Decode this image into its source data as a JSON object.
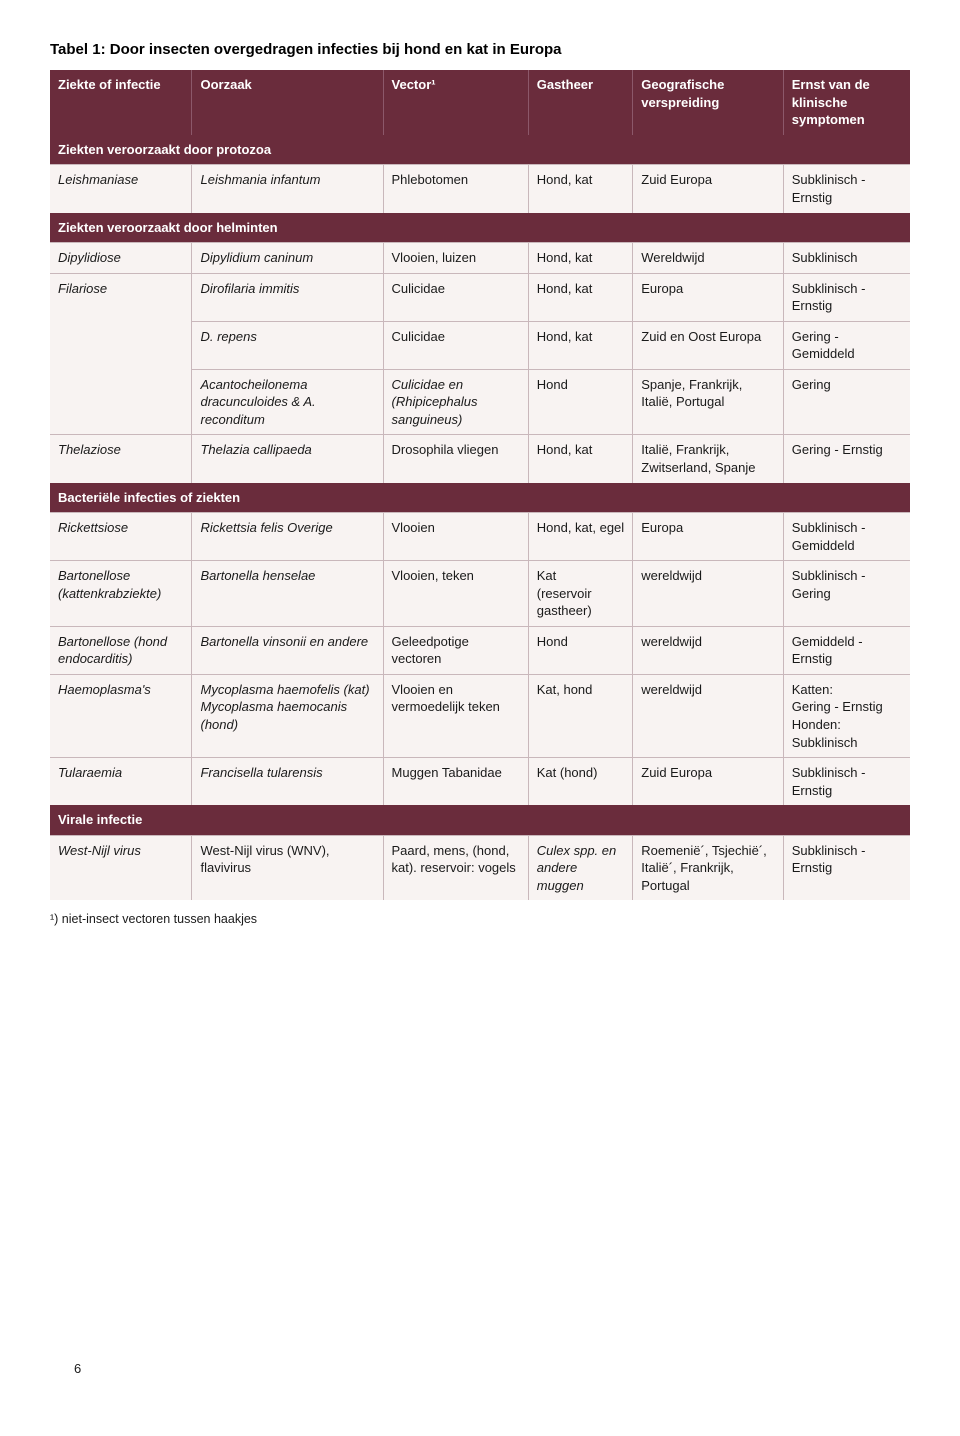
{
  "caption_label": "Tabel 1:",
  "caption_text": " Door insecten overgedragen infecties bij hond en kat in Europa",
  "headers": [
    "Ziekte of infectie",
    "Oorzaak",
    "Vector¹",
    "Gastheer",
    "Geografische verspreiding",
    "Ernst van de klinische symptomen"
  ],
  "sections": {
    "protozoa": "Ziekten veroorzaakt door protozoa",
    "helminten": "Ziekten veroorzaakt door helminten",
    "bacterieel": "Bacteriële infecties of ziekten",
    "virale": "Virale infectie"
  },
  "rows": {
    "leish": [
      "Leishmaniase",
      "Leishmania infantum",
      "Phlebotomen",
      "Hond, kat",
      "Zuid Europa",
      "Subklinisch - Ernstig"
    ],
    "dipy": [
      "Dipylidiose",
      "Dipylidium caninum",
      "Vlooien, luizen",
      "Hond, kat",
      "Wereldwijd",
      "Subklinisch"
    ],
    "fil1": [
      "Filariose",
      "Dirofilaria immitis",
      "Culicidae",
      "Hond, kat",
      "Europa",
      "Subklinisch - Ernstig"
    ],
    "fil2": [
      "",
      "D. repens",
      "Culicidae",
      "Hond, kat",
      "Zuid en Oost Europa",
      "Gering - Gemiddeld"
    ],
    "fil3": [
      "",
      "Acantocheilonema dracunculoides & A. reconditum",
      "Culicidae en (Rhipicephalus sanguineus)",
      "Hond",
      "Spanje, Frankrijk, Italië, Portugal",
      "Gering"
    ],
    "thel": [
      "Thelaziose",
      "Thelazia callipaeda",
      "Drosophila vliegen",
      "Hond, kat",
      "Italië, Frankrijk, Zwitserland, Spanje",
      "Gering - Ernstig"
    ],
    "rick": [
      "Rickettsiose",
      "Rickettsia felis Overige",
      "Vlooien",
      "Hond, kat, egel",
      "Europa",
      "Subklinisch - Gemiddeld"
    ],
    "bart1": [
      "Bartonellose (kattenkrabziekte)",
      "Bartonella henselae",
      "Vlooien, teken",
      "Kat\n(reservoir gastheer)",
      "wereldwijd",
      "Subklinisch - Gering"
    ],
    "bart2": [
      "Bartonellose (hond endocarditis)",
      "Bartonella vinsonii en andere",
      "Geleedpotige vectoren",
      "Hond",
      "wereldwijd",
      "Gemiddeld - Ernstig"
    ],
    "haemo": [
      "Haemoplasma's",
      "Mycoplasma haemofelis (kat) Mycoplasma haemocanis (hond)",
      "Vlooien en vermoedelijk teken",
      "Kat, hond",
      "wereldwijd",
      "Katten:\nGering - Ernstig\nHonden: Subklinisch"
    ],
    "tular": [
      "Tularaemia",
      "Francisella tularensis",
      "Muggen Tabanidae",
      "Kat (hond)",
      "Zuid Europa",
      "Subklinisch - Ernstig"
    ],
    "wnv": [
      "West-Nijl virus",
      "West-Nijl virus (WNV), flavivirus",
      "Paard, mens, (hond, kat). reservoir: vogels",
      "Culex spp. en andere muggen",
      "Roemenië´, Tsjechië´, Italië´, Frankrijk, Portugal",
      "Subklinisch - Ernstig"
    ]
  },
  "footnote": "¹) niet-insect vectoren tussen haakjes",
  "pagenum": "6",
  "colors": {
    "header_bg": "#6a2c3c",
    "header_fg": "#ffffff",
    "row_bg": "#f8f3f2",
    "border": "#c9b7bb"
  }
}
